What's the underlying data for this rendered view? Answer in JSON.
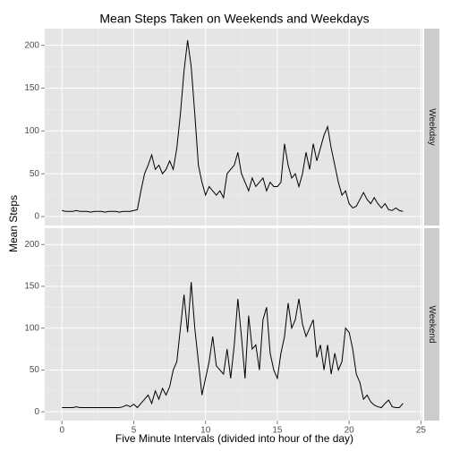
{
  "chart_data": {
    "type": "line",
    "title": "Mean Steps Taken on Weekends and Weekdays",
    "xlabel": "Five Minute Intervals (divided into hour of the day)",
    "ylabel": "Mean Steps",
    "x": [
      0,
      0.25,
      0.5,
      0.75,
      1,
      1.25,
      1.5,
      1.75,
      2,
      2.25,
      2.5,
      2.75,
      3,
      3.25,
      3.5,
      3.75,
      4,
      4.25,
      4.5,
      4.75,
      5,
      5.25,
      5.5,
      5.75,
      6,
      6.25,
      6.5,
      6.75,
      7,
      7.25,
      7.5,
      7.75,
      8,
      8.25,
      8.5,
      8.75,
      9,
      9.25,
      9.5,
      9.75,
      10,
      10.25,
      10.5,
      10.75,
      11,
      11.25,
      11.5,
      11.75,
      12,
      12.25,
      12.5,
      12.75,
      13,
      13.25,
      13.5,
      13.75,
      14,
      14.25,
      14.5,
      14.75,
      15,
      15.25,
      15.5,
      15.75,
      16,
      16.25,
      16.5,
      16.75,
      17,
      17.25,
      17.5,
      17.75,
      18,
      18.25,
      18.5,
      18.75,
      19,
      19.25,
      19.5,
      19.75,
      20,
      20.25,
      20.5,
      20.75,
      21,
      21.25,
      21.5,
      21.75,
      22,
      22.25,
      22.5,
      22.75,
      23,
      23.25,
      23.5,
      23.75
    ],
    "series": [
      {
        "name": "Weekday",
        "color": "#000000",
        "values": [
          7,
          6,
          6,
          6,
          7,
          6,
          6,
          6,
          5,
          6,
          6,
          6,
          5,
          6,
          6,
          6,
          5,
          6,
          6,
          6,
          7,
          8,
          30,
          50,
          60,
          72,
          55,
          60,
          50,
          55,
          65,
          55,
          80,
          120,
          170,
          206,
          175,
          120,
          60,
          40,
          25,
          35,
          30,
          25,
          30,
          22,
          50,
          55,
          60,
          75,
          50,
          40,
          30,
          45,
          35,
          40,
          45,
          30,
          40,
          35,
          35,
          40,
          85,
          60,
          45,
          50,
          35,
          50,
          75,
          55,
          85,
          65,
          80,
          95,
          105,
          80,
          60,
          40,
          25,
          30,
          15,
          10,
          12,
          20,
          28,
          20,
          15,
          22,
          15,
          10,
          15,
          8,
          7,
          10,
          7,
          6
        ]
      },
      {
        "name": "Weekend",
        "color": "#000000",
        "values": [
          5,
          5,
          5,
          5,
          6,
          5,
          5,
          5,
          5,
          5,
          5,
          5,
          5,
          5,
          5,
          5,
          5,
          6,
          8,
          6,
          9,
          5,
          10,
          15,
          20,
          10,
          25,
          15,
          28,
          20,
          30,
          50,
          60,
          100,
          140,
          95,
          155,
          100,
          60,
          20,
          40,
          60,
          90,
          55,
          50,
          45,
          75,
          40,
          80,
          135,
          90,
          40,
          115,
          75,
          80,
          50,
          110,
          125,
          70,
          50,
          40,
          70,
          90,
          130,
          100,
          110,
          135,
          105,
          90,
          100,
          110,
          65,
          80,
          50,
          80,
          45,
          70,
          50,
          60,
          100,
          95,
          75,
          45,
          35,
          15,
          20,
          12,
          8,
          6,
          5,
          10,
          14,
          6,
          5,
          5,
          10
        ]
      }
    ],
    "xlim": [
      -1.2,
      25.1
    ],
    "xticks": [
      0,
      5,
      10,
      15,
      20,
      25
    ],
    "ylim": [
      -10.5,
      219.5
    ],
    "yticks": [
      0,
      50,
      100,
      150,
      200
    ],
    "grid": true
  }
}
